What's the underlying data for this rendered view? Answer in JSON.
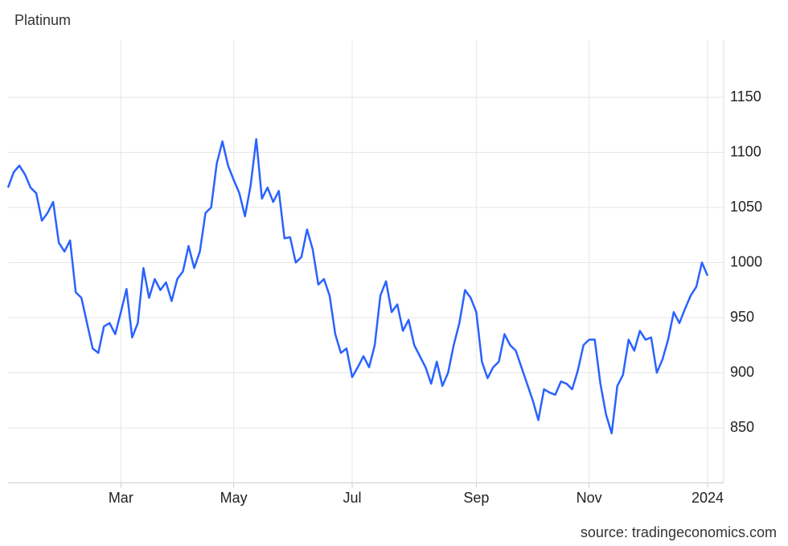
{
  "chart_data": {
    "type": "line",
    "title": "Platinum",
    "source": "source: tradingeconomics.com",
    "categories": [
      null,
      null,
      null,
      null,
      null,
      null,
      null,
      null,
      null,
      null,
      null,
      null,
      null,
      null,
      null,
      null,
      null,
      null,
      null,
      null,
      "Mar",
      null,
      null,
      null,
      null,
      null,
      null,
      null,
      null,
      null,
      null,
      null,
      null,
      null,
      null,
      null,
      null,
      null,
      null,
      null,
      "May",
      null,
      null,
      null,
      null,
      null,
      null,
      null,
      null,
      null,
      null,
      null,
      null,
      null,
      null,
      null,
      null,
      null,
      null,
      null,
      null,
      "Jul",
      null,
      null,
      null,
      null,
      null,
      null,
      null,
      null,
      null,
      null,
      null,
      null,
      null,
      null,
      null,
      null,
      null,
      null,
      null,
      null,
      null,
      "Sep",
      null,
      null,
      null,
      null,
      null,
      null,
      null,
      null,
      null,
      null,
      null,
      null,
      null,
      null,
      null,
      null,
      null,
      null,
      null,
      "Nov",
      null,
      null,
      null,
      null,
      null,
      null,
      null,
      null,
      null,
      null,
      null,
      null,
      null,
      null,
      null,
      null,
      null,
      null,
      null,
      null,
      "2024"
    ],
    "values": [
      1068,
      1082,
      1088,
      1080,
      1068,
      1063,
      1038,
      1045,
      1055,
      1018,
      1010,
      1020,
      973,
      968,
      945,
      922,
      918,
      942,
      945,
      935,
      955,
      976,
      932,
      945,
      995,
      968,
      985,
      975,
      982,
      965,
      985,
      992,
      1015,
      995,
      1010,
      1045,
      1050,
      1090,
      1110,
      1088,
      1075,
      1063,
      1042,
      1070,
      1112,
      1058,
      1068,
      1055,
      1065,
      1022,
      1023,
      1000,
      1005,
      1030,
      1012,
      980,
      985,
      970,
      935,
      918,
      922,
      896,
      905,
      915,
      905,
      925,
      970,
      983,
      955,
      962,
      938,
      948,
      925,
      915,
      905,
      890,
      910,
      888,
      900,
      925,
      945,
      975,
      968,
      955,
      910,
      895,
      905,
      910,
      935,
      925,
      920,
      905,
      890,
      875,
      857,
      885,
      882,
      880,
      892,
      890,
      885,
      902,
      925,
      930,
      930,
      890,
      862,
      845,
      888,
      898,
      930,
      920,
      938,
      930,
      932,
      900,
      912,
      930,
      955,
      945,
      958,
      970,
      978,
      1000,
      988
    ],
    "color": "#2962ff",
    "ylim": [
      800,
      1200
    ],
    "yticks": [
      850,
      900,
      950,
      1000,
      1050,
      1100,
      1150
    ],
    "grid": true
  }
}
